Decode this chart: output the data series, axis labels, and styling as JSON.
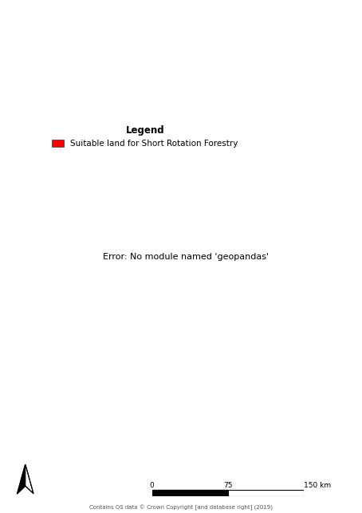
{
  "legend_title": "Legend",
  "legend_label": "Suitable land for Short Rotation Forestry",
  "land_color": "#d9d9d9",
  "land_edge_color": "#999999",
  "srf_color": "#ff0000",
  "background_color": "#ffffff",
  "scale_bar_label0": "0",
  "scale_bar_label1": "75",
  "scale_bar_label2": "150 km",
  "copyright_text": "Contains OS data © Crown Copyright [and database right] (2019)",
  "figsize": [
    4.54,
    6.43
  ],
  "dpi": 100,
  "xlim": [
    -7.8,
    2.2
  ],
  "ylim": [
    54.4,
    61.2
  ]
}
